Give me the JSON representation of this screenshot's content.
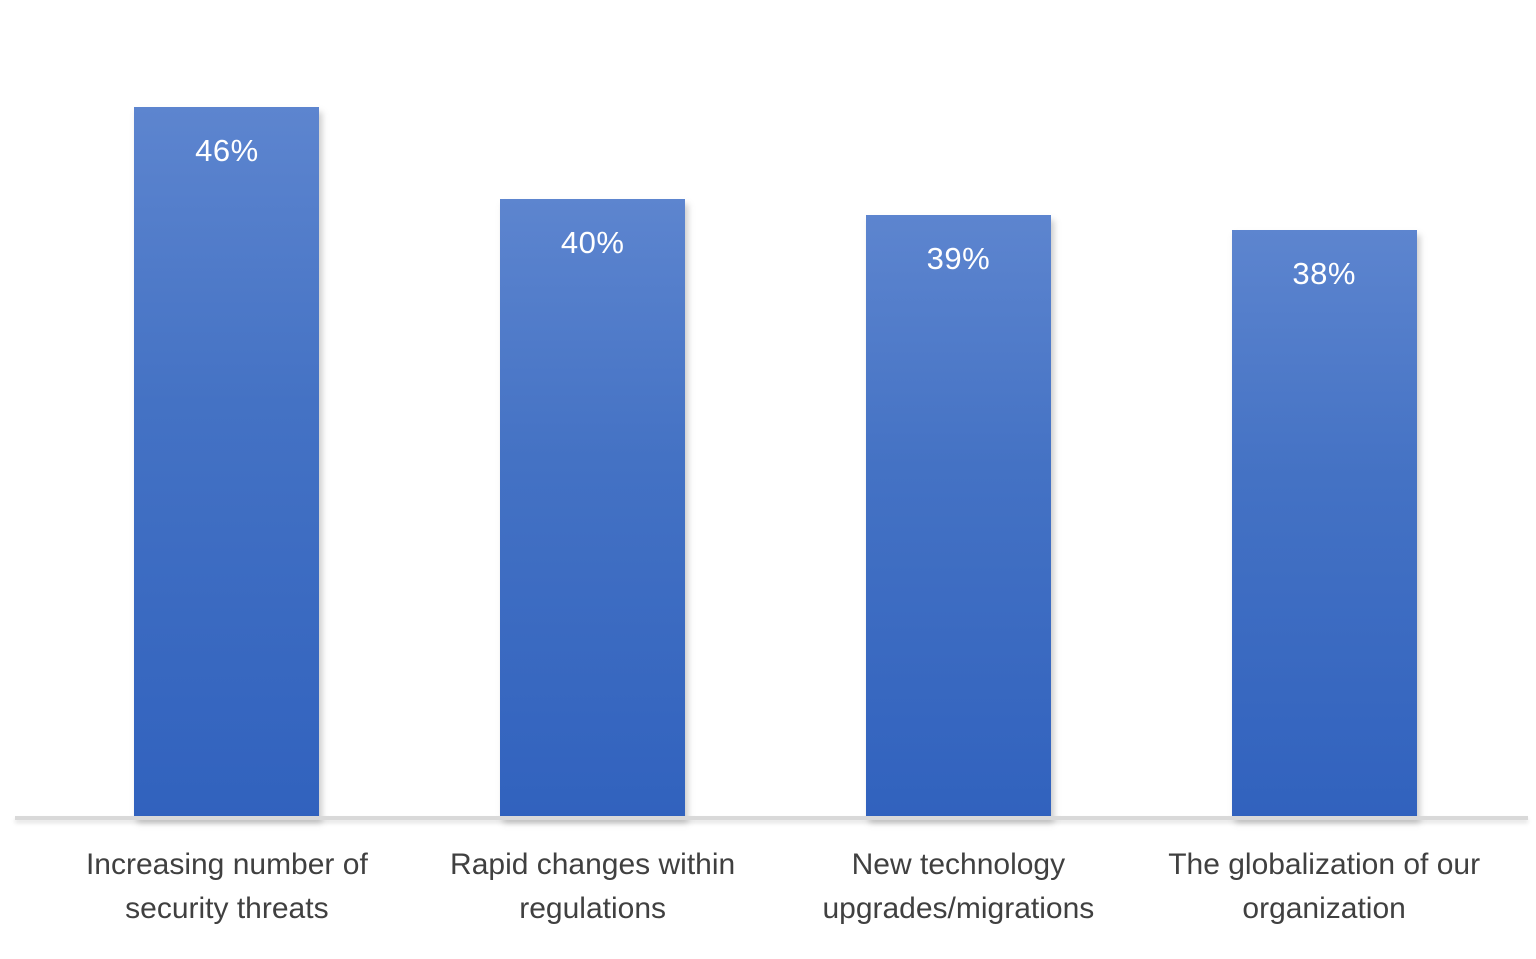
{
  "chart_data": {
    "type": "bar",
    "categories": [
      "Increasing number of security threats",
      "Rapid changes within regulations",
      "New technology upgrades/migrations",
      "The globalization of our organization"
    ],
    "values": [
      46,
      40,
      39,
      38
    ],
    "value_labels": [
      "46%",
      "40%",
      "39%",
      "38%"
    ],
    "title": "",
    "xlabel": "",
    "ylabel": "",
    "ylim": [
      0,
      50
    ],
    "grid": false,
    "legend": "none",
    "bar_color_top": "#5d85cf",
    "bar_color_mid": "#4472c4",
    "bar_color_bottom": "#3162be",
    "data_label_color": "#ffffff",
    "category_label_color": "#404040",
    "axis_line_color": "#d9d9d9",
    "background_color": "#ffffff"
  }
}
